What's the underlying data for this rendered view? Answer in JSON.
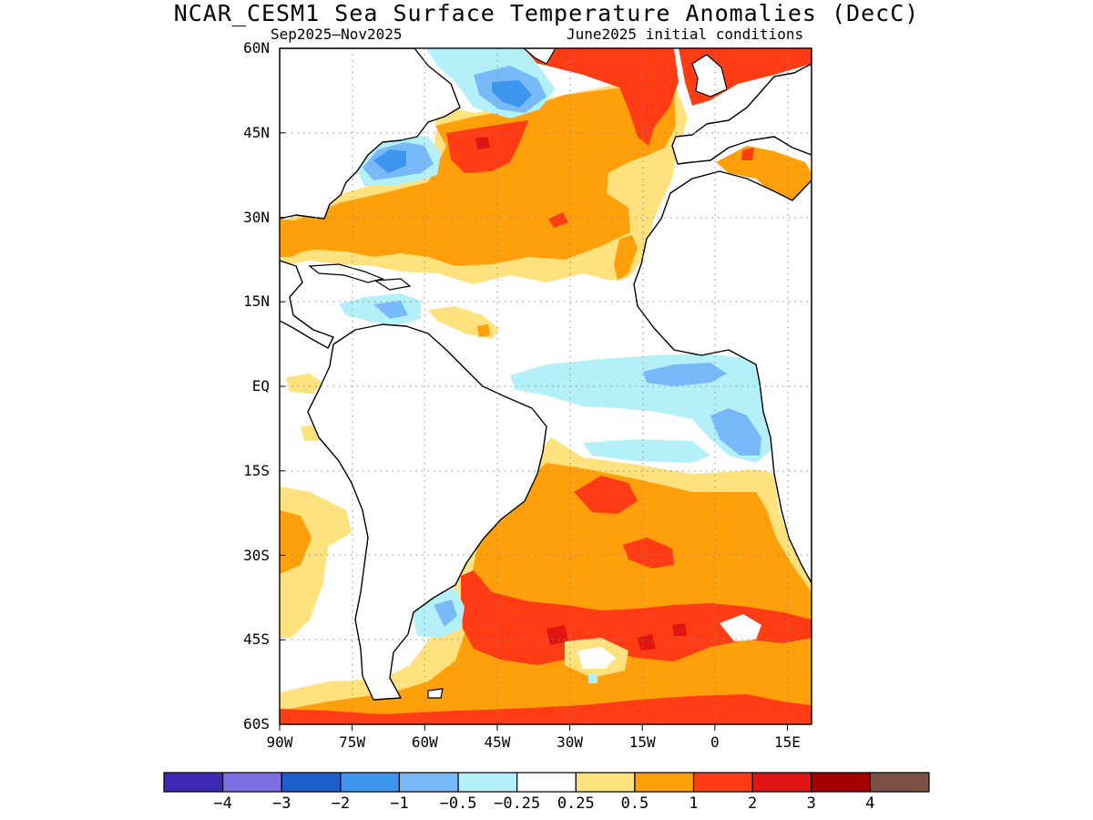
{
  "title": "NCAR_CESM1 Sea Surface Temperature Anomalies (DecC)",
  "subtitle_left": "Sep2025–Nov2025",
  "subtitle_right": "June2025 initial conditions",
  "map": {
    "lat_range": [
      -60,
      60
    ],
    "lon_range": [
      -90,
      20
    ],
    "grid": true,
    "lat_ticks": [
      {
        "value": 60,
        "label": "60N"
      },
      {
        "value": 45,
        "label": "45N"
      },
      {
        "value": 30,
        "label": "30N"
      },
      {
        "value": 15,
        "label": "15N"
      },
      {
        "value": 0,
        "label": "EQ"
      },
      {
        "value": -15,
        "label": "15S"
      },
      {
        "value": -30,
        "label": "30S"
      },
      {
        "value": -45,
        "label": "45S"
      },
      {
        "value": -60,
        "label": "60S"
      }
    ],
    "lon_ticks": [
      {
        "value": -90,
        "label": "90W"
      },
      {
        "value": -75,
        "label": "75W"
      },
      {
        "value": -60,
        "label": "60W"
      },
      {
        "value": -45,
        "label": "45W"
      },
      {
        "value": -30,
        "label": "30W"
      },
      {
        "value": -15,
        "label": "15W"
      },
      {
        "value": 0,
        "label": "0"
      },
      {
        "value": 15,
        "label": "15E"
      }
    ],
    "land_color": "#ffffff",
    "coast_color": "#000000"
  },
  "colorbar": {
    "colors": [
      "#3c28b4",
      "#7f6fe6",
      "#1e5fd0",
      "#3c96f0",
      "#78b9fa",
      "#b4f0fa",
      "#ffffff",
      "#ffe17d",
      "#ffa00a",
      "#ff3c14",
      "#e11414",
      "#a50000",
      "#7d5046"
    ],
    "labels": [
      "−4",
      "−3",
      "−2",
      "−1",
      "−0.5",
      "−0.25",
      "0.25",
      "0.5",
      "1",
      "2",
      "3",
      "4"
    ]
  }
}
